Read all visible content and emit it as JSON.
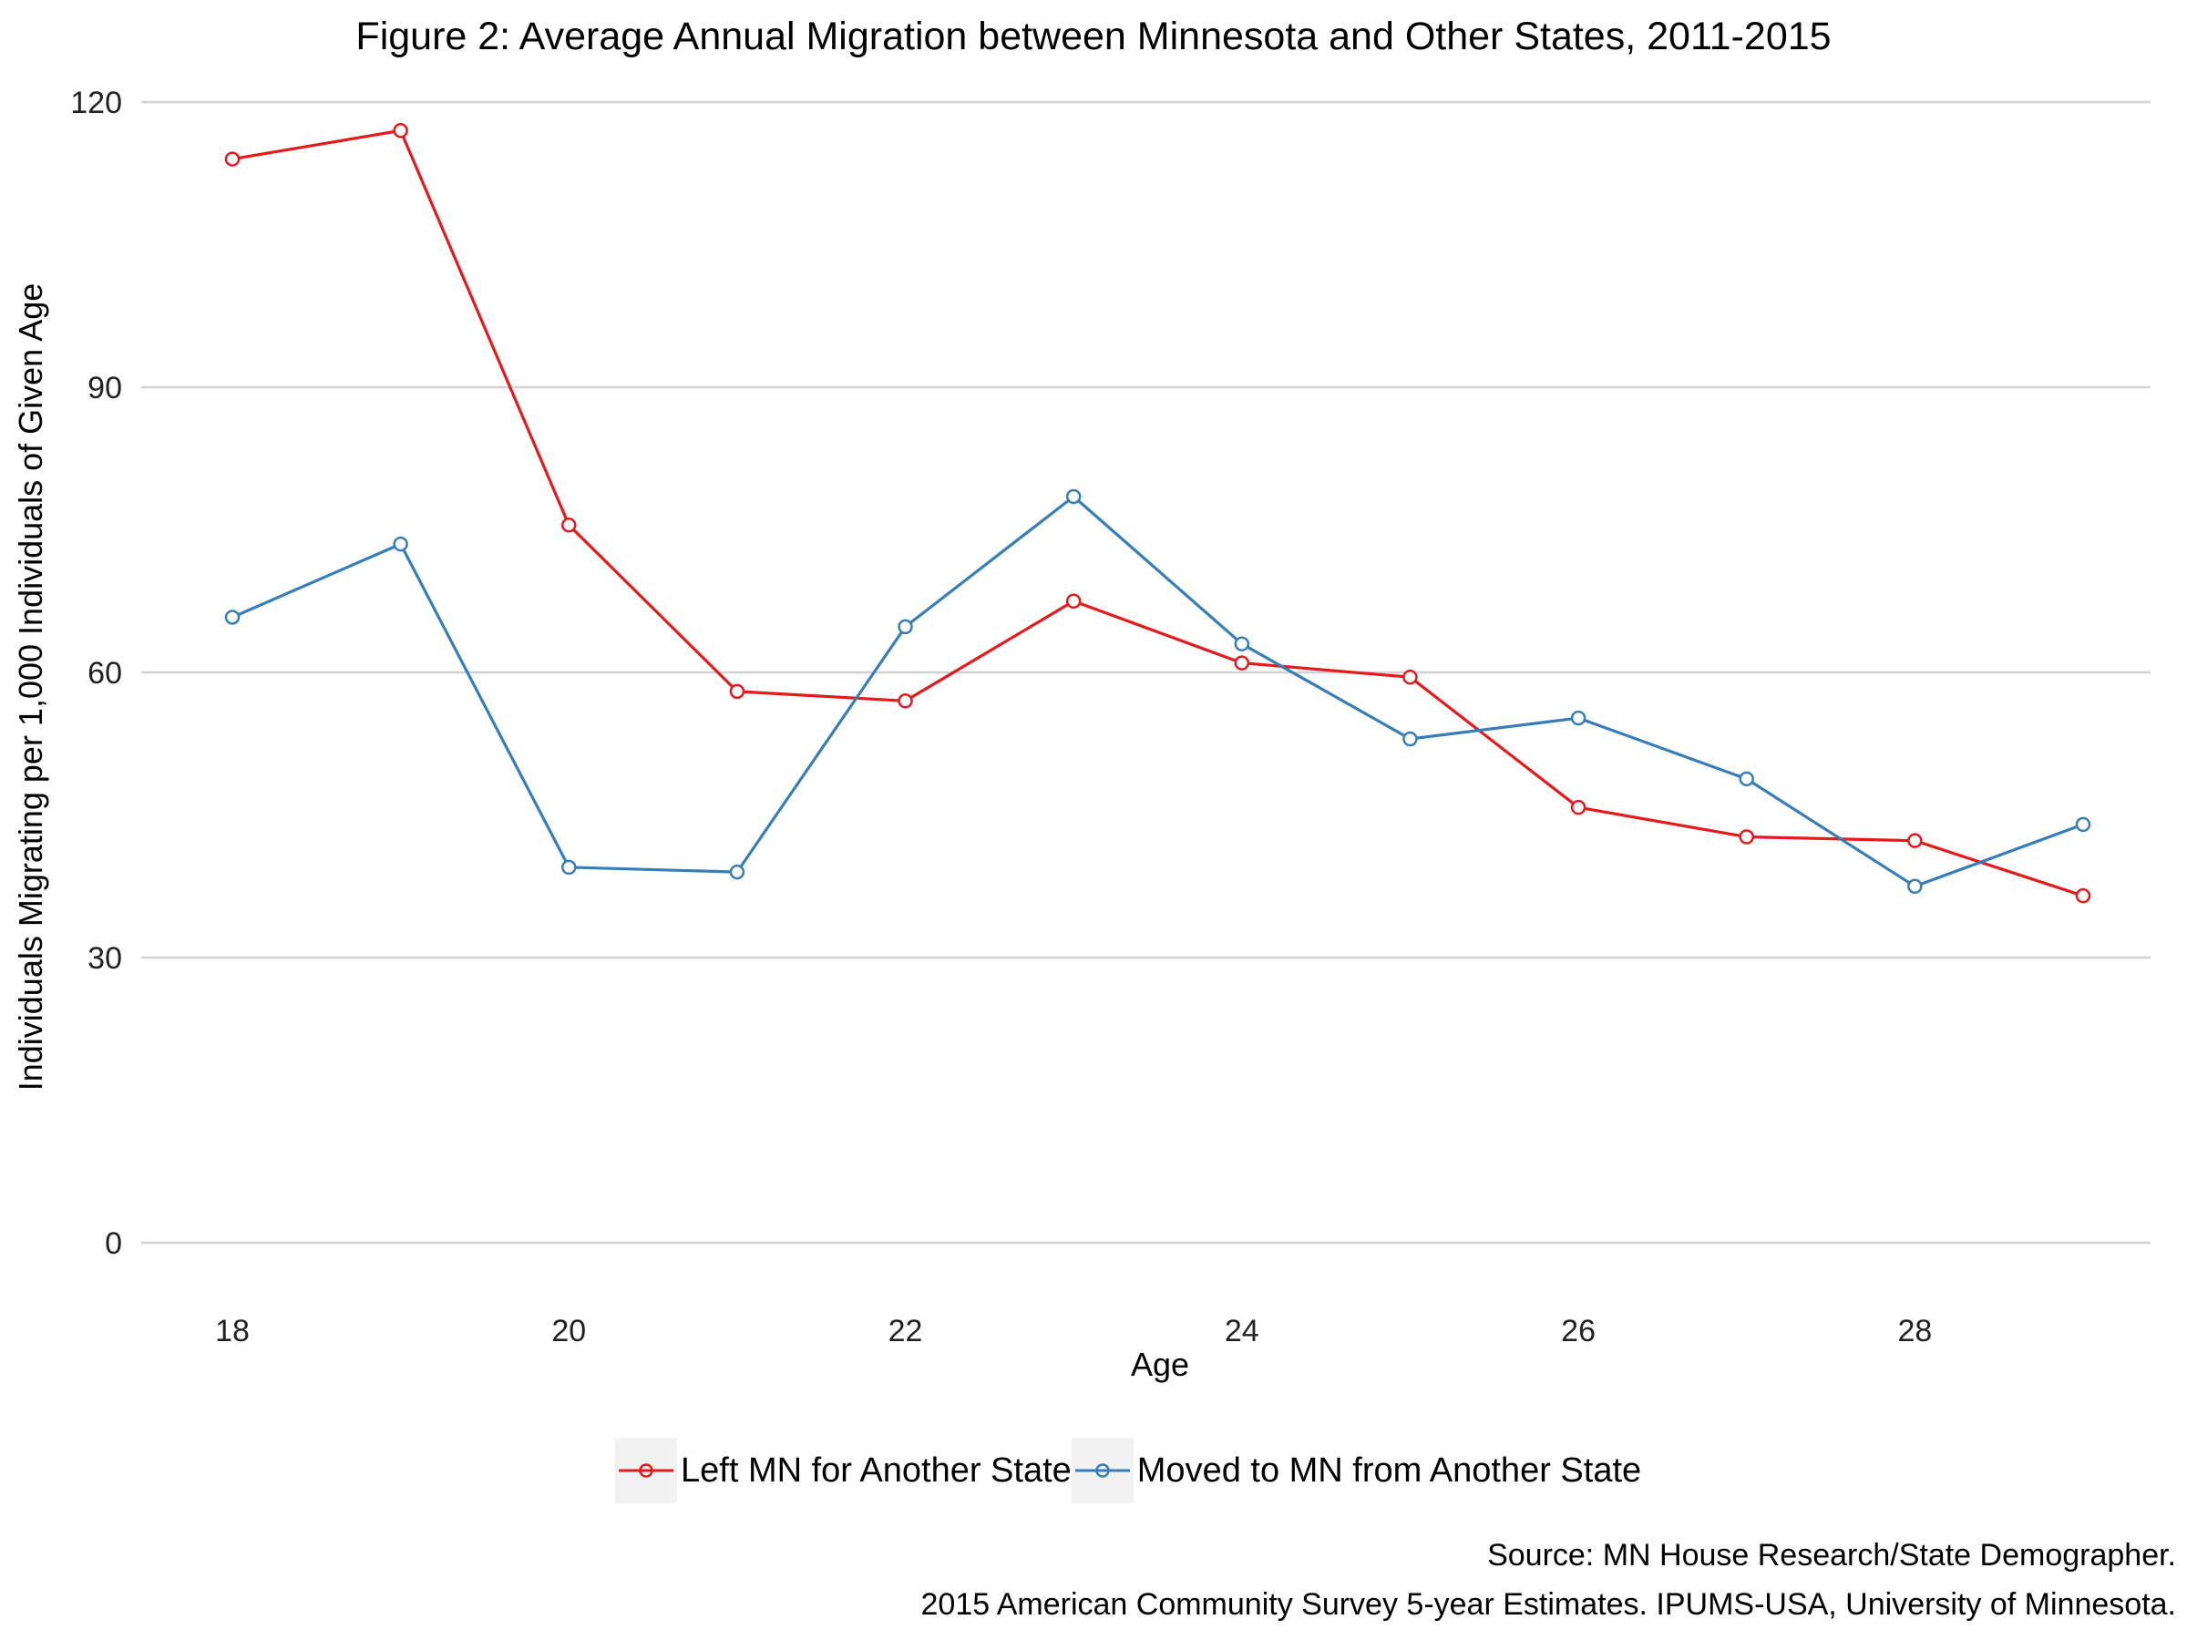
{
  "chart_data": {
    "type": "line",
    "title": "Figure 2: Average Annual Migration between Minnesota and Other States, 2011-2015",
    "xlabel": "Age",
    "ylabel": "Individuals Migrating per 1,000 Individuals of Given Age",
    "x": [
      18,
      19,
      20,
      21,
      22,
      23,
      24,
      25,
      26,
      27,
      28,
      29
    ],
    "x_ticks": [
      "18",
      "20",
      "22",
      "24",
      "26",
      "28"
    ],
    "y_ticks": [
      "0",
      "30",
      "60",
      "90",
      "120"
    ],
    "ylim": [
      0,
      120
    ],
    "xlim": [
      18,
      29
    ],
    "grid": "horizontal",
    "legend_position": "bottom",
    "series": [
      {
        "name": "Left MN for Another State",
        "color": "#e41a1c",
        "values": [
          114,
          117,
          75.5,
          58,
          57,
          67.5,
          61,
          59.5,
          45.8,
          42.7,
          42.3,
          36.5
        ]
      },
      {
        "name": "Moved to MN from Another State",
        "color": "#377eb8",
        "values": [
          65.8,
          73.5,
          39.5,
          39,
          64.8,
          78.5,
          63,
          53,
          55.2,
          48.8,
          37.5,
          44
        ]
      }
    ]
  },
  "source": {
    "line1": "Source: MN House Research/State Demographer.",
    "line2": "2015 American Community Survey 5-year Estimates. IPUMS-USA, University of Minnesota."
  }
}
